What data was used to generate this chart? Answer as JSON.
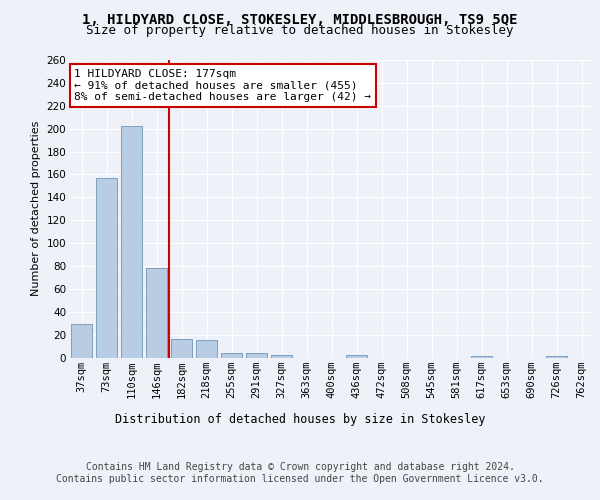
{
  "title": "1, HILDYARD CLOSE, STOKESLEY, MIDDLESBROUGH, TS9 5QE",
  "subtitle": "Size of property relative to detached houses in Stokesley",
  "xlabel": "Distribution of detached houses by size in Stokesley",
  "ylabel": "Number of detached properties",
  "categories": [
    "37sqm",
    "73sqm",
    "110sqm",
    "146sqm",
    "182sqm",
    "218sqm",
    "255sqm",
    "291sqm",
    "327sqm",
    "363sqm",
    "400sqm",
    "436sqm",
    "472sqm",
    "508sqm",
    "545sqm",
    "581sqm",
    "617sqm",
    "653sqm",
    "690sqm",
    "726sqm",
    "762sqm"
  ],
  "values": [
    29,
    157,
    202,
    78,
    16,
    15,
    4,
    4,
    2,
    0,
    0,
    2,
    0,
    0,
    0,
    0,
    1,
    0,
    0,
    1,
    0
  ],
  "bar_color": "#b8cce4",
  "bar_edge_color": "#7094b8",
  "vline_index": 4,
  "vline_color": "#cc0000",
  "annotation_box_color": "#cc0000",
  "annotation_text": "1 HILDYARD CLOSE: 177sqm\n← 91% of detached houses are smaller (455)\n8% of semi-detached houses are larger (42) →",
  "ylim": [
    0,
    260
  ],
  "yticks": [
    0,
    20,
    40,
    60,
    80,
    100,
    120,
    140,
    160,
    180,
    200,
    220,
    240,
    260
  ],
  "bg_color": "#eef2f8",
  "plot_bg_color": "#eef2f8",
  "grid_color": "#ffffff",
  "footer_text": "Contains HM Land Registry data © Crown copyright and database right 2024.\nContains public sector information licensed under the Open Government Licence v3.0.",
  "title_fontsize": 10,
  "subtitle_fontsize": 9,
  "xlabel_fontsize": 8.5,
  "ylabel_fontsize": 8,
  "annot_fontsize": 8,
  "tick_fontsize": 7.5,
  "footer_fontsize": 7
}
